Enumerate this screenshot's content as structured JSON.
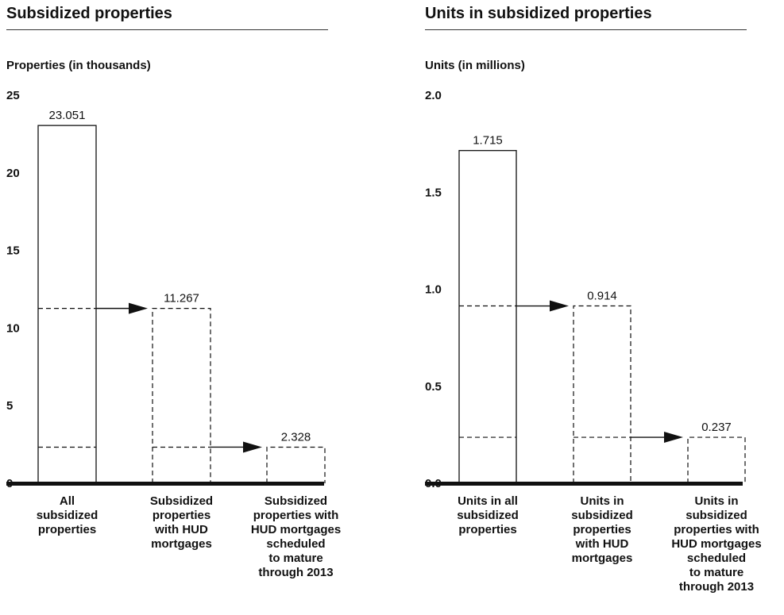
{
  "chart_data": [
    {
      "type": "bar",
      "title": "Subsidized properties",
      "ylabel": "Properties (in thousands)",
      "xlabel": "",
      "ylim": [
        0,
        25
      ],
      "yticks": [
        "0",
        "5",
        "10",
        "15",
        "20",
        "25"
      ],
      "categories": [
        [
          "All",
          "subsidized",
          "properties"
        ],
        [
          "Subsidized",
          "properties",
          "with HUD",
          "mortgages"
        ],
        [
          "Subsidized",
          "properties with",
          "HUD mortgages",
          "scheduled",
          "to mature",
          "through 2013"
        ]
      ],
      "values": [
        23.051,
        11.267,
        2.328
      ],
      "value_labels": [
        "23.051",
        "11.267",
        "2.328"
      ],
      "grid": false
    },
    {
      "type": "bar",
      "title": "Units in subsidized properties",
      "ylabel": "Units (in millions)",
      "xlabel": "",
      "ylim": [
        0,
        2.0
      ],
      "yticks": [
        "0.0",
        "0.5",
        "1.0",
        "1.5",
        "2.0"
      ],
      "categories": [
        [
          "Units in all",
          "subsidized",
          "properties"
        ],
        [
          "Units in",
          "subsidized",
          "properties",
          "with HUD",
          "mortgages"
        ],
        [
          "Units in",
          "subsidized",
          "properties with",
          "HUD mortgages",
          "scheduled",
          "to mature",
          "through 2013"
        ]
      ],
      "values": [
        1.715,
        0.914,
        0.237
      ],
      "value_labels": [
        "1.715",
        "0.914",
        "0.237"
      ],
      "grid": false
    }
  ]
}
